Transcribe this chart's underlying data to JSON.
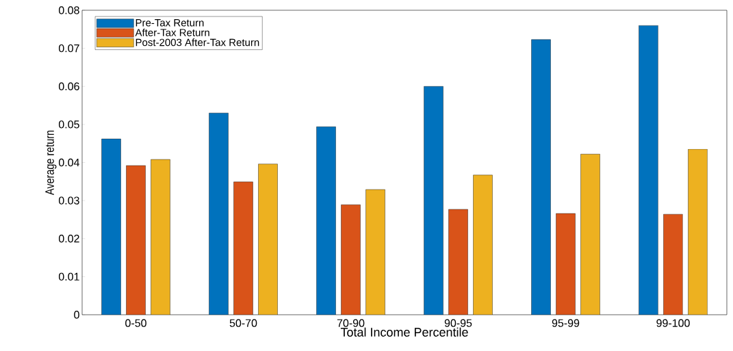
{
  "chart_data": {
    "type": "bar",
    "xlabel": "Total Income Percentile",
    "ylabel": "Average return",
    "categories": [
      "0-50",
      "50-70",
      "70-90",
      "90-95",
      "95-99",
      "99-100"
    ],
    "series": [
      {
        "name": "Pre-Tax Return",
        "color": "#0072bd",
        "values": [
          0.0462,
          0.053,
          0.0494,
          0.06,
          0.0723,
          0.076
        ]
      },
      {
        "name": "After-Tax Return",
        "color": "#d95319",
        "values": [
          0.0392,
          0.0349,
          0.0289,
          0.0277,
          0.0266,
          0.0264
        ]
      },
      {
        "name": "Post-2003 After-Tax Return",
        "color": "#edb120",
        "values": [
          0.0408,
          0.0396,
          0.0329,
          0.0367,
          0.0422,
          0.0435
        ]
      }
    ],
    "ylim": [
      0,
      0.08
    ],
    "yticks": [
      0,
      0.01,
      0.02,
      0.03,
      0.04,
      0.05,
      0.06,
      0.07,
      0.08
    ],
    "legend": "top left"
  }
}
